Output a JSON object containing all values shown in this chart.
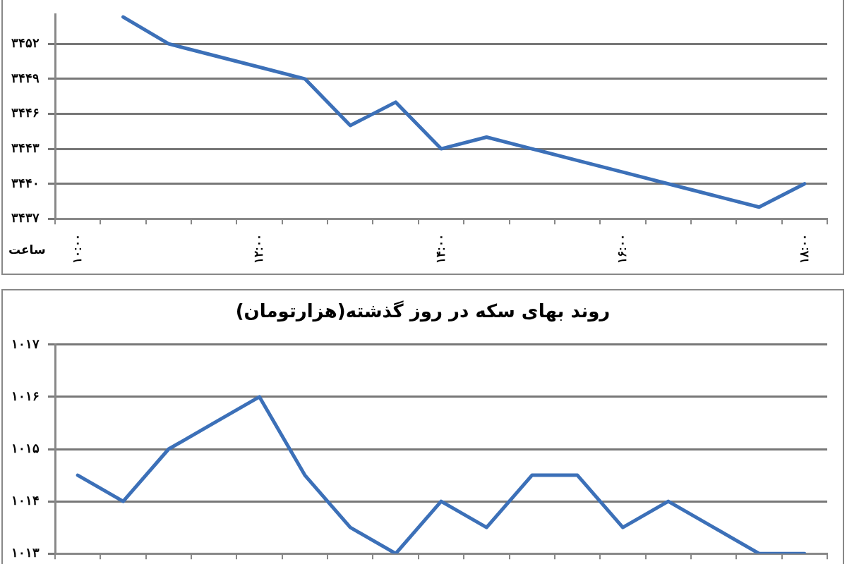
{
  "chart_data": [
    {
      "type": "line",
      "xlabel": "ساعت",
      "categories": [
        "۱۰:۰۰",
        null,
        null,
        null,
        "۱۲:۰۰",
        null,
        null,
        null,
        "۱۴:۰۰",
        null,
        null,
        null,
        "۱۶:۰۰",
        null,
        null,
        null,
        "۱۸:۰۰"
      ],
      "series": [
        {
          "color": "#3c70b8",
          "values": [
            null,
            3454.3,
            3452,
            3451,
            3450,
            3449,
            3445,
            3447,
            3443,
            3444,
            3443,
            3442,
            3441,
            3440,
            3439,
            3438,
            3440
          ]
        }
      ],
      "ylim": [
        3437,
        3454.5
      ],
      "yticks": [
        {
          "value": 3437,
          "label": "۳۴۳۷"
        },
        {
          "value": 3440,
          "label": "۳۴۴۰"
        },
        {
          "value": 3443,
          "label": "۳۴۴۳"
        },
        {
          "value": 3446,
          "label": "۳۴۴۶"
        },
        {
          "value": 3449,
          "label": "۳۴۴۹"
        },
        {
          "value": 3452,
          "label": "۳۴۵۲"
        }
      ],
      "grid": "y",
      "legend": false,
      "marker": "none",
      "line_style": "solid"
    },
    {
      "type": "line",
      "title": "روند بهای سکه در روز گذشته(هزارتومان)",
      "categories": [
        null,
        null,
        null,
        null,
        null,
        null,
        null,
        null,
        null,
        null,
        null,
        null,
        null,
        null,
        null,
        null,
        null
      ],
      "series": [
        {
          "color": "#3c70b8",
          "values": [
            1014.5,
            1014,
            1015,
            1015.5,
            1016,
            1014.5,
            1013.5,
            1013,
            1014,
            1013.5,
            1014.5,
            1014.5,
            1013.5,
            1014,
            1013.5,
            1013,
            1013
          ]
        }
      ],
      "ylim": [
        1013,
        1017
      ],
      "yticks": [
        {
          "value": 1013,
          "label": "۱۰۱۳"
        },
        {
          "value": 1014,
          "label": "۱۰۱۴"
        },
        {
          "value": 1015,
          "label": "۱۰۱۵"
        },
        {
          "value": 1016,
          "label": "۱۰۱۶"
        },
        {
          "value": 1017,
          "label": "۱۰۱۷"
        }
      ],
      "grid": "y",
      "legend": false,
      "marker": "none",
      "line_style": "solid",
      "tick_labels": "y"
    }
  ]
}
